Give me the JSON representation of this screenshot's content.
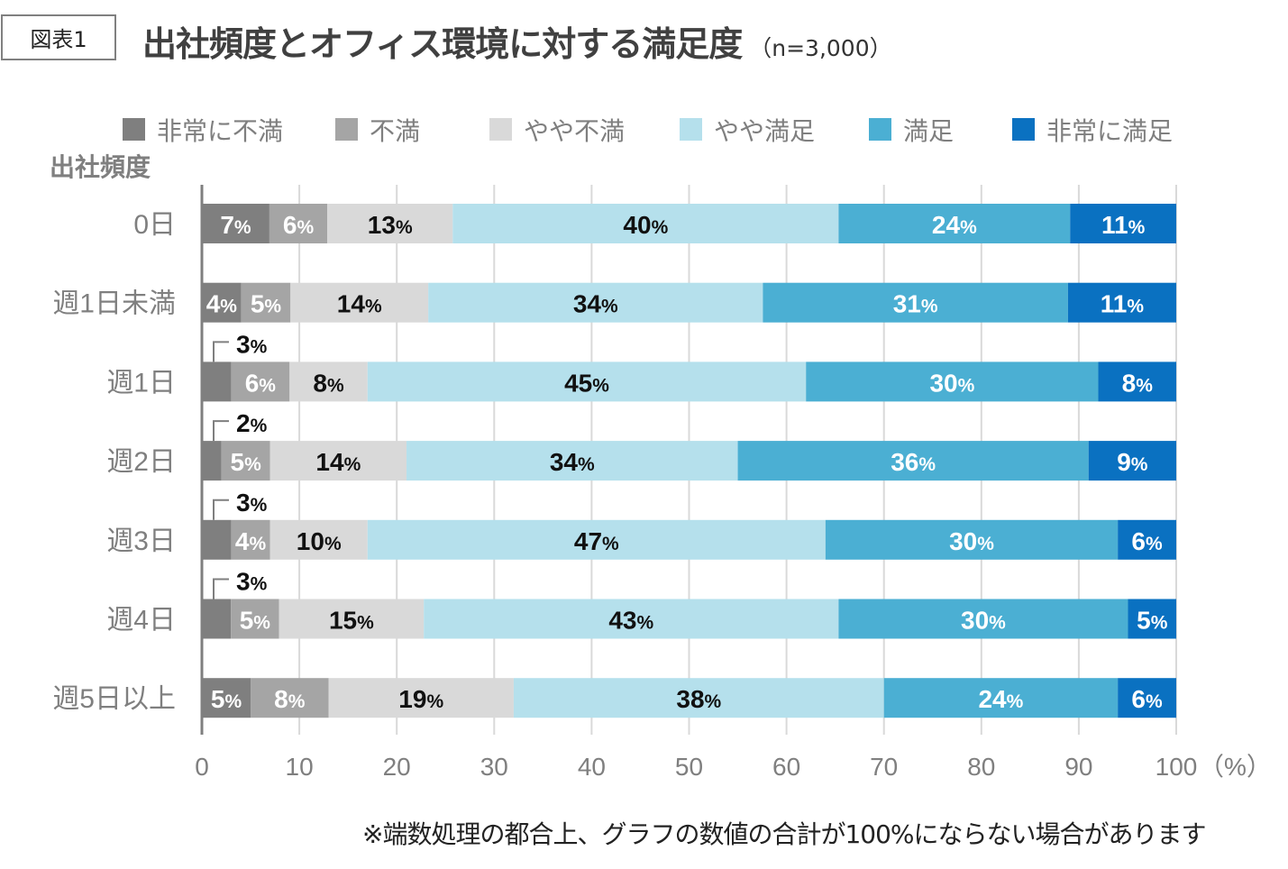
{
  "figure_label": "図表1",
  "title": "出社頻度とオフィス環境に対する満足度",
  "sample": "（n=3,000）",
  "note": "※端数処理の都合上、グラフの数値の合計が100%にならない場合があります",
  "chart_data": {
    "type": "bar",
    "orientation": "horizontal",
    "stacked": true,
    "title": "出社頻度とオフィス環境に対する満足度",
    "ylabel": "出社頻度",
    "xlabel": "（%）",
    "xlim": [
      0,
      100
    ],
    "xticks": [
      0,
      10,
      20,
      30,
      40,
      50,
      60,
      70,
      80,
      90,
      100
    ],
    "grid": true,
    "legend_position": "top",
    "categories": [
      "0日",
      "週1日未満",
      "週1日",
      "週2日",
      "週3日",
      "週4日",
      "週5日以上"
    ],
    "series": [
      {
        "name": "非常に不満",
        "color": "#7f7f7f",
        "values": [
          7,
          4,
          3,
          2,
          3,
          3,
          5
        ]
      },
      {
        "name": "不満",
        "color": "#a5a5a5",
        "values": [
          6,
          5,
          6,
          5,
          4,
          5,
          8
        ]
      },
      {
        "name": "やや不満",
        "color": "#d9d9d9",
        "values": [
          13,
          14,
          8,
          14,
          10,
          15,
          19
        ]
      },
      {
        "name": "やや満足",
        "color": "#b5e0ec",
        "values": [
          40,
          34,
          45,
          34,
          47,
          43,
          38
        ]
      },
      {
        "name": "満足",
        "color": "#4bafd3",
        "values": [
          24,
          31,
          30,
          36,
          30,
          30,
          24
        ]
      },
      {
        "name": "非常に満足",
        "color": "#0a71c1",
        "values": [
          11,
          11,
          8,
          9,
          6,
          5,
          6
        ]
      }
    ],
    "label_unit": "%"
  }
}
